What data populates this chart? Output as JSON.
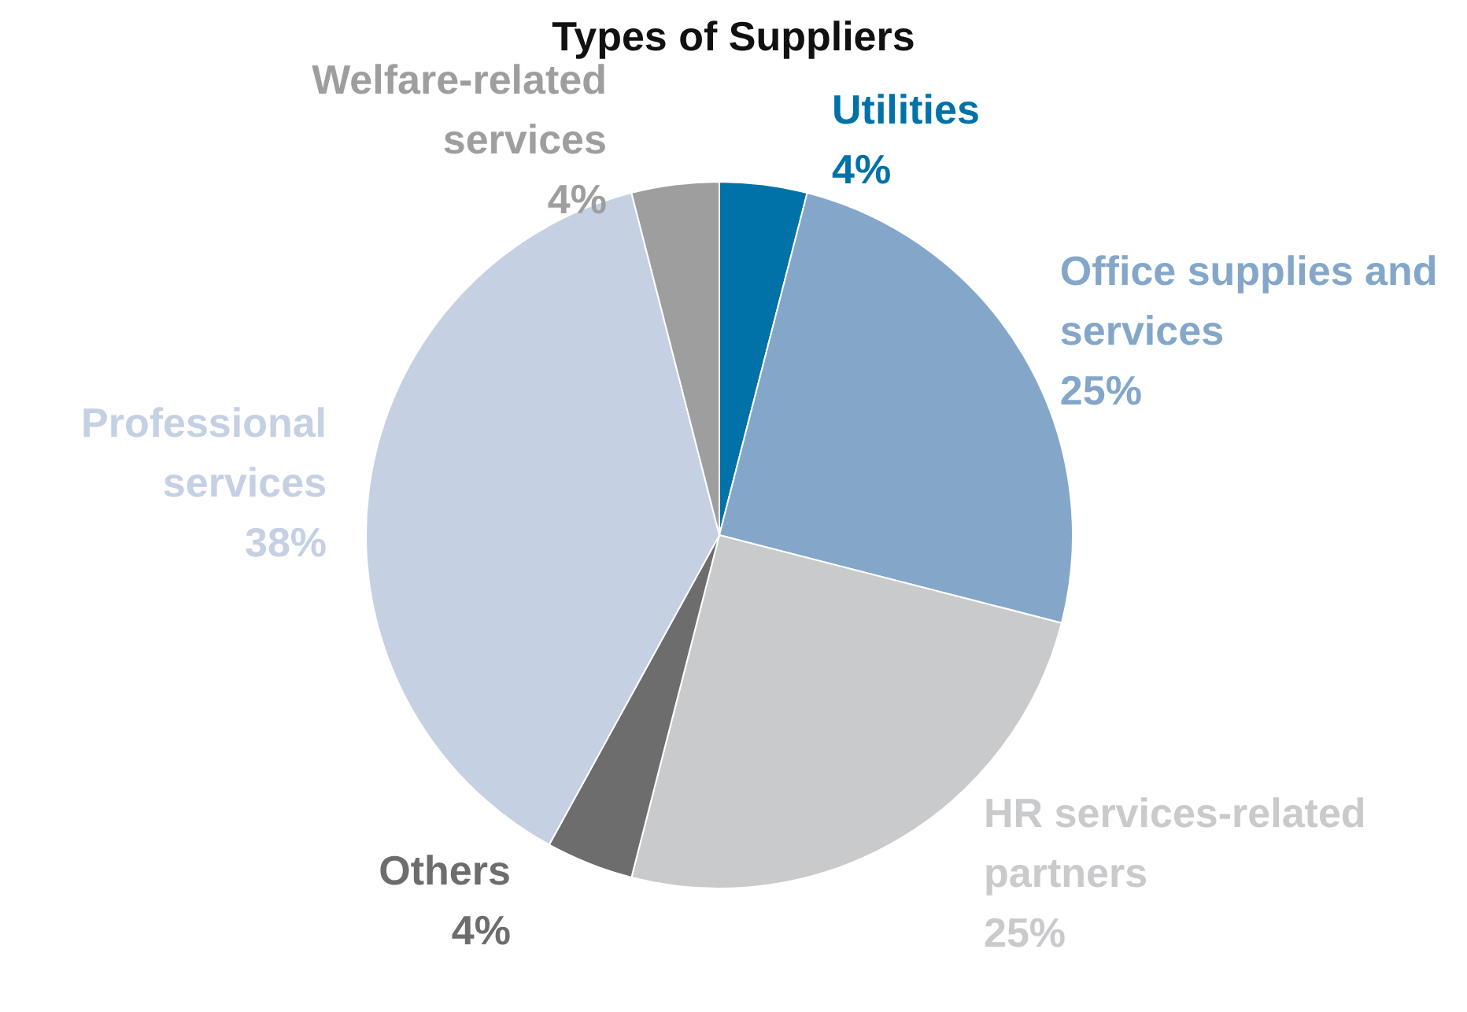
{
  "chart_data": {
    "type": "pie",
    "title": "Types of Suppliers",
    "categories": [
      "Utilities",
      "Office supplies and services",
      "HR services-related partners",
      "Others",
      "Professional services",
      "Welfare-related services"
    ],
    "values": [
      4,
      25,
      25,
      4,
      38,
      4
    ],
    "colors": [
      "#0072a8",
      "#84a7c9",
      "#c9cacc",
      "#6d6d6d",
      "#c5d0e3",
      "#9e9e9e"
    ],
    "value_labels": [
      "4%",
      "25%",
      "25%",
      "4%",
      "38%",
      "4%"
    ],
    "legend": false
  }
}
